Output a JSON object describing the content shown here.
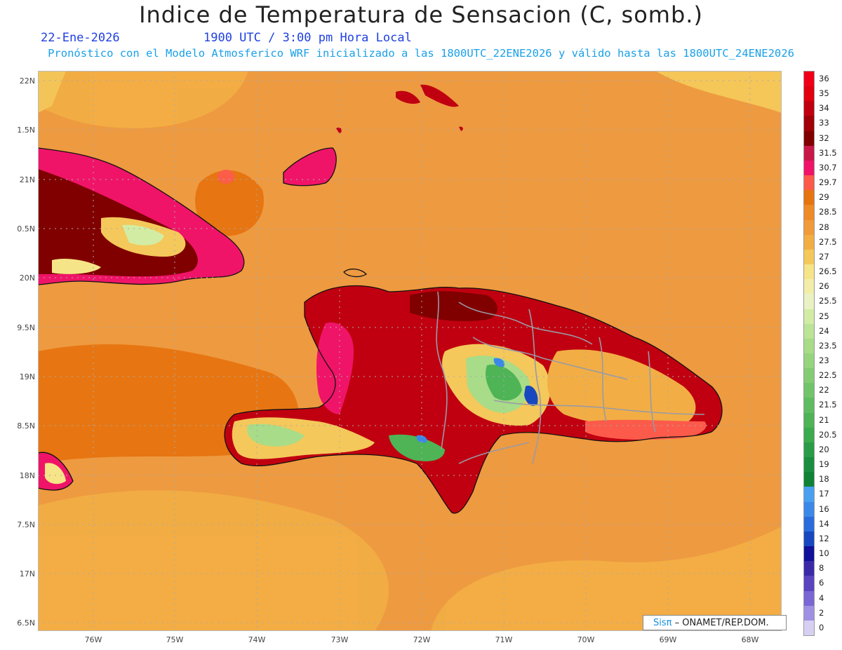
{
  "title": "Indice de Temperatura de Sensacion (C, somb.)",
  "date": "22-Ene-2026",
  "time": "1900 UTC / 3:00 pm Hora Local",
  "subtitle": "Pronóstico con el Modelo Atmosferico WRF inicializado a las 1800UTC_22ENE2026 y válido hasta las  1800UTC_24ENE2026",
  "lat_labels": [
    "22N",
    "1.5N",
    "21N",
    "0.5N",
    "20N",
    "9.5N",
    "19N",
    "8.5N",
    "18N",
    "7.5N",
    "17N",
    "6.5N"
  ],
  "lon_labels": [
    "76W",
    "75W",
    "74W",
    "73W",
    "72W",
    "71W",
    "70W",
    "69W",
    "68W"
  ],
  "colorbar": {
    "labels": [
      "36",
      "35",
      "34",
      "33",
      "32",
      "31.5",
      "30.7",
      "29.7",
      "29",
      "28.5",
      "28",
      "27.5",
      "27",
      "26.5",
      "26",
      "25.5",
      "25",
      "24",
      "23.5",
      "23",
      "22.5",
      "22",
      "21.5",
      "21",
      "20.5",
      "20",
      "19",
      "18",
      "17",
      "16",
      "14",
      "12",
      "10",
      "8",
      "6",
      "4",
      "2",
      "0"
    ],
    "colors": [
      "#f00018",
      "#e00010",
      "#c00010",
      "#a00008",
      "#800000",
      "#c81848",
      "#f01468",
      "#fc5a4a",
      "#e67410",
      "#ee8a28",
      "#f09a3a",
      "#f2ae44",
      "#f4c85a",
      "#f6e488",
      "#f2eeaa",
      "#eaf2c4",
      "#d2eca4",
      "#bce496",
      "#a8dc88",
      "#96d47e",
      "#84cc74",
      "#72c46a",
      "#60bc60",
      "#4eb456",
      "#3caa4e",
      "#2a9c48",
      "#1a8e40",
      "#108236",
      "#4aa0f0",
      "#3c88e8",
      "#2a6cdc",
      "#1848c0",
      "#10109a",
      "#3a2aa8",
      "#5a44c0",
      "#7a66d4",
      "#a090e4",
      "#d8d0f2"
    ]
  },
  "credit_sis": "Sisπ",
  "credit_text": " – ONAMET/REP.DOM."
}
